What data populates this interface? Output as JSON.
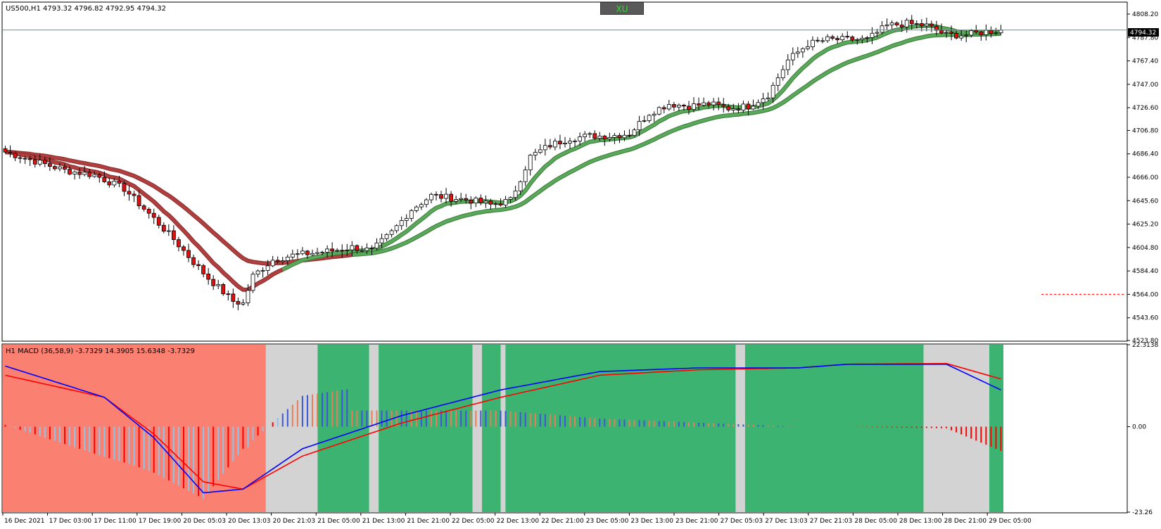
{
  "main": {
    "header": "US500,H1  4793.32 4796.82 4792.95 4794.32",
    "current_price_label": "4794.32",
    "xu_button": "XU",
    "colors": {
      "bull": "#ffffff",
      "bear": "#e01010",
      "wick": "#000000",
      "ma_fast": "#5aa85a",
      "ma_slow": "#5aa85a",
      "ma_red": "#b04040"
    }
  },
  "macd": {
    "header": "H1 MACD (36,58,9) -3.7329 14.3905 15.6348 -3.7329",
    "colors": {
      "bg_red": "#fa8072",
      "bg_gray": "#d3d3d3",
      "bg_green": "#3cb371",
      "macd_line": "#0000ff",
      "signal_line": "#ff0000"
    }
  },
  "chart_data": [
    {
      "type": "candlestick",
      "title": "US500,H1",
      "ylim": [
        4523.8,
        4818.0
      ],
      "yticks": [
        "4808.20",
        "4787.80",
        "4767.40",
        "4747.00",
        "4726.60",
        "4706.80",
        "4686.40",
        "4666.00",
        "4645.60",
        "4625.20",
        "4604.80",
        "4584.40",
        "4564.00",
        "4543.60",
        "4523.80"
      ],
      "current_price": 4794.32,
      "alert_level": 4564.0,
      "xticks": [
        "16 Dec 2021",
        "17 Dec 03:00",
        "17 Dec 11:00",
        "17 Dec 19:00",
        "20 Dec 05:03",
        "20 Dec 13:03",
        "20 Dec 21:03",
        "21 Dec 05:00",
        "21 Dec 13:00",
        "21 Dec 21:00",
        "22 Dec 05:00",
        "22 Dec 13:00",
        "22 Dec 21:00",
        "23 Dec 05:00",
        "23 Dec 13:00",
        "23 Dec 21:00",
        "27 Dec 05:03",
        "27 Dec 13:03",
        "27 Dec 21:03",
        "28 Dec 05:00",
        "28 Dec 13:00",
        "28 Dec 21:00",
        "29 Dec 05:00"
      ],
      "close_path": [
        [
          0,
          4688
        ],
        [
          6,
          4680
        ],
        [
          12,
          4672
        ],
        [
          18,
          4668
        ],
        [
          24,
          4656
        ],
        [
          30,
          4630
        ],
        [
          34,
          4612
        ],
        [
          38,
          4592
        ],
        [
          41,
          4578
        ],
        [
          44,
          4566
        ],
        [
          46,
          4558
        ],
        [
          48,
          4556
        ],
        [
          50,
          4580
        ],
        [
          54,
          4594
        ],
        [
          58,
          4598
        ],
        [
          62,
          4600
        ],
        [
          66,
          4602
        ],
        [
          70,
          4605
        ],
        [
          74,
          4602
        ],
        [
          78,
          4618
        ],
        [
          82,
          4638
        ],
        [
          86,
          4650
        ],
        [
          90,
          4648
        ],
        [
          94,
          4646
        ],
        [
          98,
          4642
        ],
        [
          102,
          4646
        ],
        [
          106,
          4684
        ],
        [
          110,
          4694
        ],
        [
          114,
          4700
        ],
        [
          118,
          4702
        ],
        [
          122,
          4702
        ],
        [
          126,
          4704
        ],
        [
          130,
          4722
        ],
        [
          134,
          4730
        ],
        [
          138,
          4728
        ],
        [
          142,
          4730
        ],
        [
          146,
          4726
        ],
        [
          150,
          4728
        ],
        [
          154,
          4738
        ],
        [
          158,
          4768
        ],
        [
          162,
          4782
        ],
        [
          166,
          4786
        ],
        [
          170,
          4786
        ],
        [
          174,
          4786
        ],
        [
          178,
          4798
        ],
        [
          182,
          4800
        ],
        [
          186,
          4798
        ],
        [
          190,
          4790
        ],
        [
          194,
          4790
        ],
        [
          198,
          4793
        ],
        [
          201,
          4794
        ]
      ]
    },
    {
      "type": "macd",
      "title": "H1 MACD (36,58,9)",
      "ylim": [
        -23.26,
        22.3138
      ],
      "yticks": [
        "22.3138",
        "0.00",
        "-23.26"
      ],
      "macd_path": [
        [
          0,
          16.5
        ],
        [
          20,
          8
        ],
        [
          30,
          -3
        ],
        [
          40,
          -18
        ],
        [
          48,
          -17
        ],
        [
          60,
          -6
        ],
        [
          80,
          3
        ],
        [
          100,
          10
        ],
        [
          120,
          15
        ],
        [
          140,
          16
        ],
        [
          160,
          16
        ],
        [
          170,
          17
        ],
        [
          190,
          17
        ],
        [
          201,
          10
        ]
      ],
      "signal_path": [
        [
          0,
          14
        ],
        [
          20,
          8
        ],
        [
          30,
          -2
        ],
        [
          40,
          -15
        ],
        [
          48,
          -17
        ],
        [
          60,
          -8
        ],
        [
          80,
          1
        ],
        [
          100,
          8
        ],
        [
          120,
          14
        ],
        [
          140,
          15.5
        ],
        [
          160,
          16
        ],
        [
          170,
          17
        ],
        [
          190,
          17.2
        ],
        [
          201,
          13
        ]
      ]
    }
  ]
}
